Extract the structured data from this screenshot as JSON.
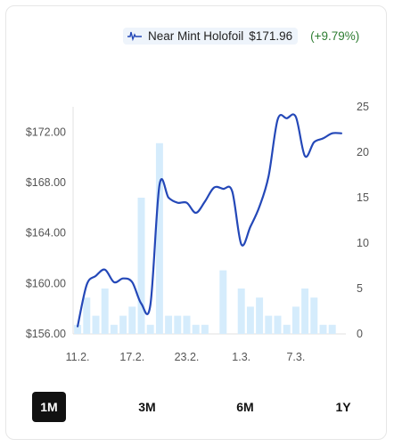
{
  "legend": {
    "icon": "line-chart-icon",
    "label": "Near Mint Holofoil",
    "price": "$171.96",
    "change": "(+9.79%)"
  },
  "ranges": [
    {
      "label": "1M",
      "active": true
    },
    {
      "label": "3M",
      "active": false
    },
    {
      "label": "6M",
      "active": false
    },
    {
      "label": "1Y",
      "active": false
    }
  ],
  "chart_data": {
    "type": "line",
    "title": "",
    "x_tick_labels": [
      "11.2.",
      "17.2.",
      "23.2.",
      "1.3.",
      "7.3."
    ],
    "y_left": {
      "ticks": [
        "$156.00",
        "$160.00",
        "$164.00",
        "$168.00",
        "$172.00"
      ],
      "range": [
        156,
        174
      ]
    },
    "y_right": {
      "ticks": [
        "0",
        "5",
        "10",
        "15",
        "20",
        "25"
      ],
      "range": [
        0,
        25
      ]
    },
    "colors": {
      "line": "#2448b8",
      "bars": "#d5ecfc"
    },
    "series": [
      {
        "kind": "line",
        "values": [
          156.6,
          159.9,
          160.6,
          161.1,
          160.1,
          160.4,
          160.1,
          158.4,
          158.3,
          167.8,
          166.8,
          166.4,
          166.4,
          165.6,
          166.5,
          167.6,
          167.5,
          167.3,
          163.1,
          164.5,
          166.1,
          168.5,
          173.0,
          173.1,
          173.2,
          170.1,
          171.2,
          171.5,
          171.9,
          171.9
        ]
      },
      {
        "kind": "bar",
        "values": [
          1,
          4,
          2,
          5,
          1,
          2,
          3,
          15,
          1,
          21,
          2,
          2,
          2,
          1,
          1,
          0,
          7,
          0,
          5,
          3,
          4,
          2,
          2,
          1,
          3,
          5,
          4,
          1,
          1,
          0
        ]
      }
    ]
  }
}
